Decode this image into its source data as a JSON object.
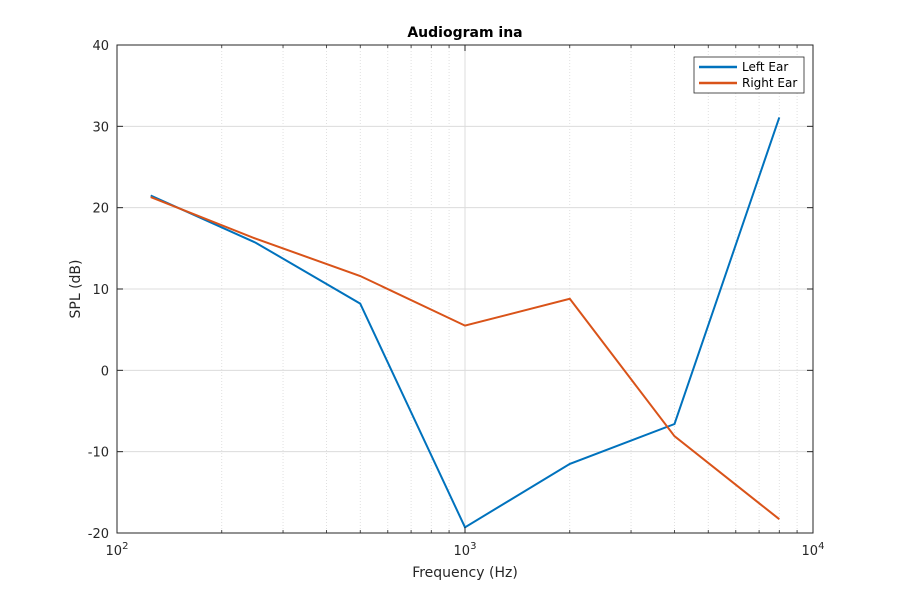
{
  "chart_data": {
    "type": "line",
    "title": "Audiogram ina",
    "xlabel": "Frequency (Hz)",
    "ylabel": "SPL (dB)",
    "x_scale": "log",
    "xlim": [
      100,
      10000
    ],
    "ylim": [
      -20,
      40
    ],
    "x_ticks": [
      {
        "value": 100,
        "base": "10",
        "exp": "2"
      },
      {
        "value": 1000,
        "base": "10",
        "exp": "3"
      },
      {
        "value": 10000,
        "base": "10",
        "exp": "4"
      }
    ],
    "y_ticks": [
      {
        "value": -20,
        "label": "-20"
      },
      {
        "value": -10,
        "label": "-10"
      },
      {
        "value": 0,
        "label": "0"
      },
      {
        "value": 10,
        "label": "10"
      },
      {
        "value": 20,
        "label": "20"
      },
      {
        "value": 30,
        "label": "30"
      },
      {
        "value": 40,
        "label": "40"
      }
    ],
    "grid": true,
    "legend_position": "top-right",
    "series": [
      {
        "name": "Left Ear",
        "color": "#0072BD",
        "x": [
          125,
          250,
          500,
          1000,
          2000,
          4000,
          8000
        ],
        "y": [
          21.5,
          15.7,
          8.2,
          -19.3,
          -11.5,
          -6.6,
          31.1
        ]
      },
      {
        "name": "Right Ear",
        "color": "#D95319",
        "x": [
          125,
          250,
          500,
          1000,
          2000,
          4000,
          8000
        ],
        "y": [
          21.3,
          16.2,
          11.6,
          5.5,
          8.8,
          -8.1,
          -18.3
        ]
      }
    ]
  }
}
